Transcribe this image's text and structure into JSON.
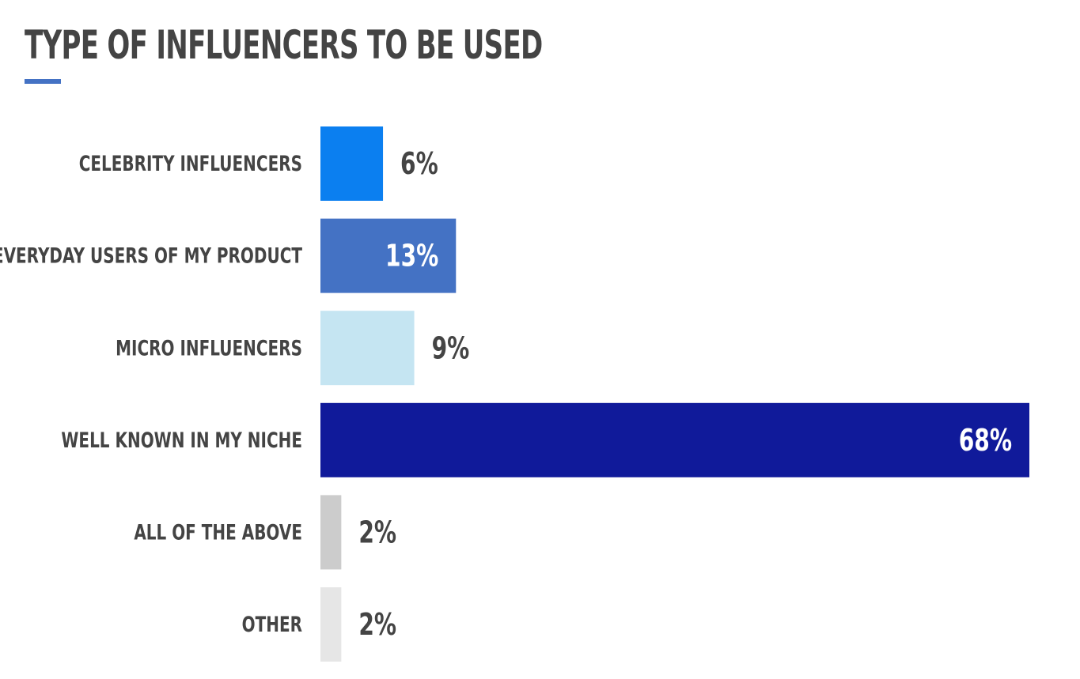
{
  "chart_data": {
    "type": "bar",
    "orientation": "horizontal",
    "title": "TYPE OF INFLUENCERS TO BE USED",
    "categories": [
      "CELEBRITY INFLUENCERS",
      "EVERYDAY USERS OF MY PRODUCT",
      "MICRO INFLUENCERS",
      "WELL KNOWN IN MY NICHE",
      "ALL OF THE ABOVE",
      "OTHER"
    ],
    "values": [
      6,
      13,
      9,
      68,
      2,
      2
    ],
    "value_labels": [
      "6%",
      "13%",
      "9%",
      "68%",
      "2%",
      "2%"
    ],
    "bar_colors": [
      "#0b7ff0",
      "#4472c4",
      "#c5e5f2",
      "#101a9a",
      "#cccccc",
      "#e6e6e6"
    ],
    "label_colors": [
      "#444444",
      "#ffffff",
      "#444444",
      "#ffffff",
      "#444444",
      "#444444"
    ],
    "xlabel": "",
    "ylabel": "",
    "xlim": [
      0,
      68
    ],
    "grid": false,
    "legend": "none",
    "accent_color": "#4472c4"
  }
}
